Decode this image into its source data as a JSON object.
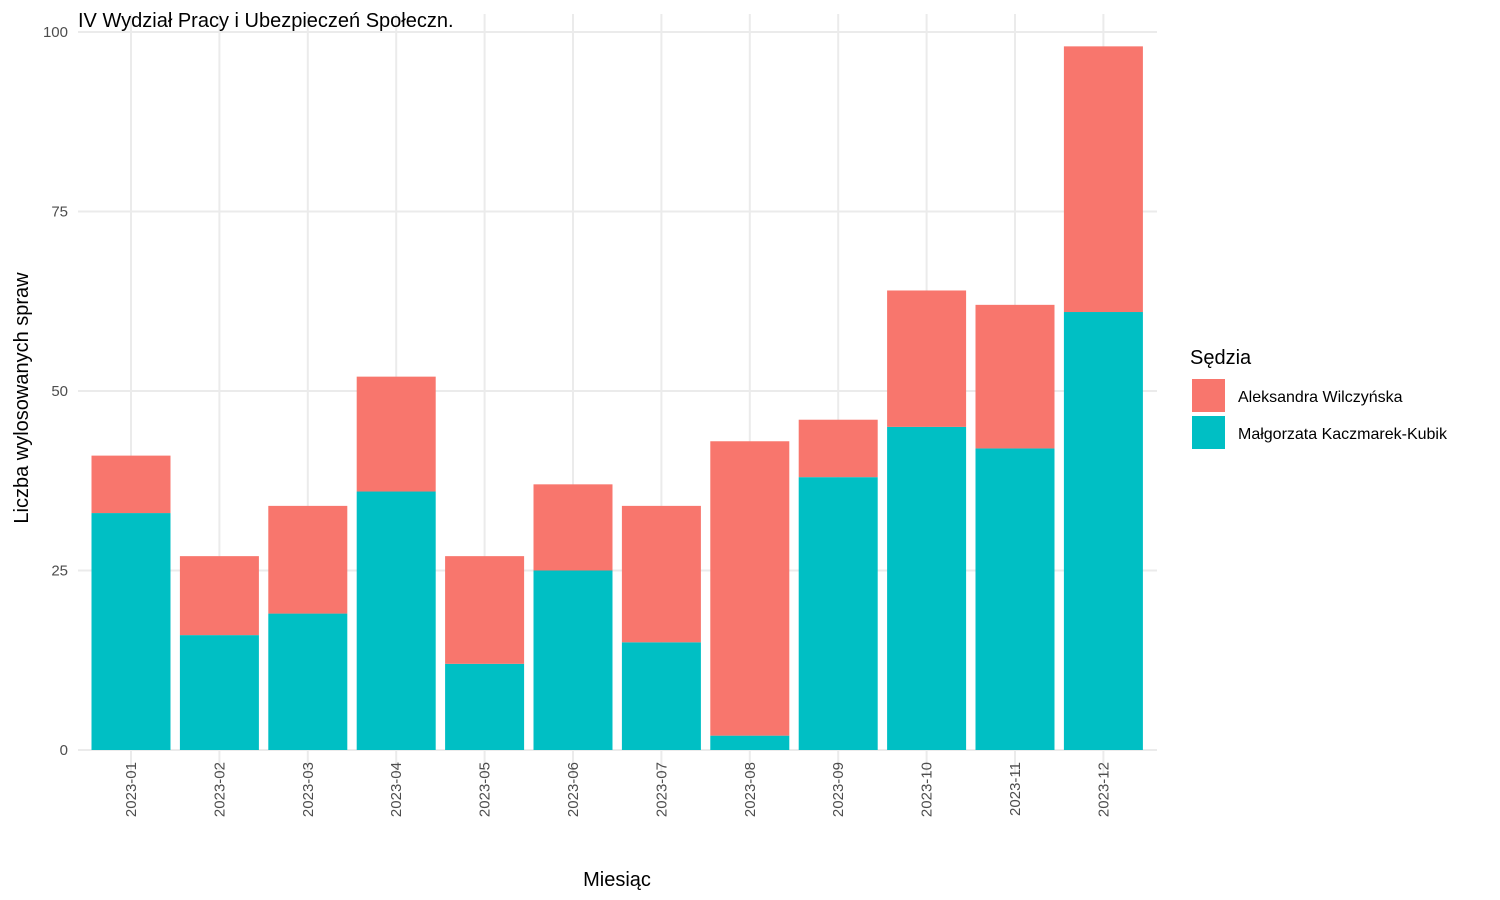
{
  "chart_data": {
    "type": "bar",
    "stacked": true,
    "title": "IV Wydział Pracy i Ubezpieczeń Społeczn.",
    "xlabel": "Miesiąc",
    "ylabel": "Liczba wylosowanych spraw",
    "ylim": [
      0,
      100
    ],
    "yticks": [
      "0",
      "25",
      "50",
      "75",
      "100"
    ],
    "ytick_values": [
      0,
      25,
      50,
      75,
      100
    ],
    "grid": true,
    "categories": [
      "2023-01",
      "2023-02",
      "2023-03",
      "2023-04",
      "2023-05",
      "2023-06",
      "2023-07",
      "2023-08",
      "2023-09",
      "2023-10",
      "2023-11",
      "2023-12"
    ],
    "legend": {
      "title": "Sędzia",
      "position": "right"
    },
    "series": [
      {
        "name": "Małgorzata Kaczmarek-Kubik",
        "color": "#00BFC4",
        "values": [
          33,
          16,
          19,
          36,
          12,
          25,
          15,
          2,
          38,
          45,
          42,
          61
        ]
      },
      {
        "name": "Aleksandra Wilczyńska",
        "color": "#F8766D",
        "values": [
          8,
          11,
          15,
          16,
          15,
          12,
          19,
          41,
          8,
          19,
          20,
          37
        ]
      }
    ],
    "legend_order": [
      1,
      0
    ]
  }
}
